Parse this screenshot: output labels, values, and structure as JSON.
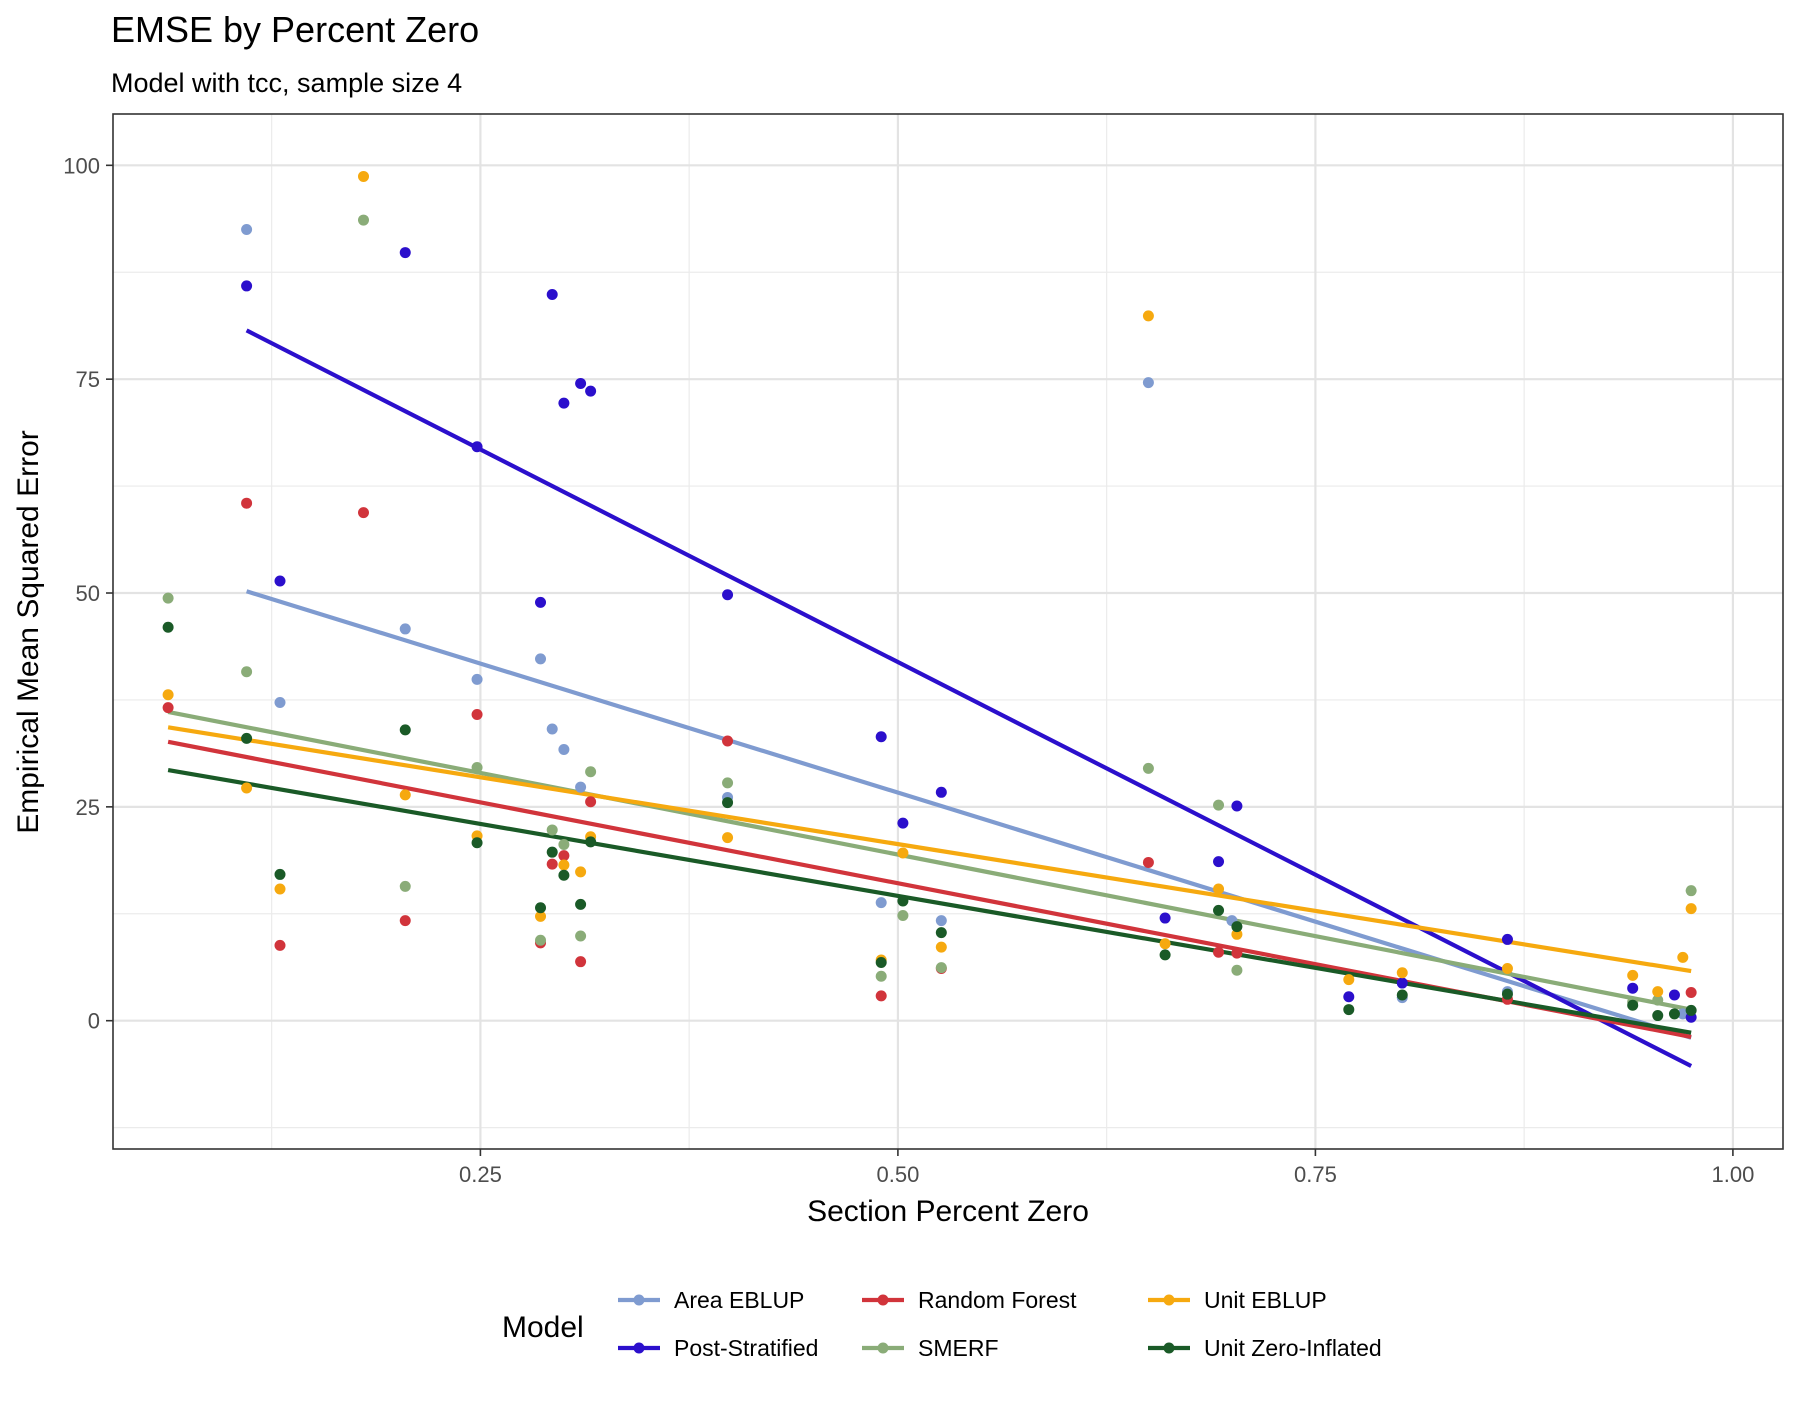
{
  "chart_data": {
    "type": "scatter",
    "title": "EMSE by Percent Zero",
    "subtitle": "Model with tcc, sample size 4",
    "xlabel": "Section Percent Zero",
    "ylabel": "Empirical Mean Squared Error",
    "xlim": [
      0.03,
      1.03
    ],
    "ylim": [
      -15,
      106
    ],
    "x_ticks": [
      0.25,
      0.5,
      0.75,
      1.0
    ],
    "x_tick_labels": [
      "0.25",
      "0.50",
      "0.75",
      "1.00"
    ],
    "y_ticks": [
      0,
      25,
      50,
      75,
      100
    ],
    "y_tick_labels": [
      "0",
      "25",
      "50",
      "75",
      "100"
    ],
    "grid": true,
    "legend": {
      "title": "Model",
      "position": "bottom",
      "columns": 3
    },
    "series": [
      {
        "name": "Area EBLUP",
        "color": "#7f9bd0",
        "points": [
          [
            0.11,
            92.5
          ],
          [
            0.13,
            37.2
          ],
          [
            0.205,
            45.8
          ],
          [
            0.248,
            39.9
          ],
          [
            0.286,
            42.3
          ],
          [
            0.293,
            34.1
          ],
          [
            0.3,
            31.7
          ],
          [
            0.31,
            27.3
          ],
          [
            0.398,
            26.1
          ],
          [
            0.49,
            13.8
          ],
          [
            0.526,
            11.7
          ],
          [
            0.65,
            74.6
          ],
          [
            0.7,
            11.7
          ],
          [
            0.802,
            2.7
          ],
          [
            0.865,
            3.4
          ],
          [
            0.97,
            0.8
          ]
        ],
        "fit": [
          [
            0.11,
            50.2
          ],
          [
            0.975,
            -2.0
          ]
        ]
      },
      {
        "name": "Post-Stratified",
        "color": "#2b0fcc",
        "points": [
          [
            0.11,
            85.9
          ],
          [
            0.13,
            51.4
          ],
          [
            0.205,
            89.8
          ],
          [
            0.248,
            67.1
          ],
          [
            0.286,
            48.9
          ],
          [
            0.293,
            84.9
          ],
          [
            0.3,
            72.2
          ],
          [
            0.31,
            74.5
          ],
          [
            0.316,
            73.6
          ],
          [
            0.398,
            49.8
          ],
          [
            0.49,
            33.2
          ],
          [
            0.503,
            23.1
          ],
          [
            0.526,
            26.7
          ],
          [
            0.66,
            12.0
          ],
          [
            0.692,
            18.6
          ],
          [
            0.703,
            25.1
          ],
          [
            0.77,
            2.8
          ],
          [
            0.802,
            4.4
          ],
          [
            0.865,
            9.5
          ],
          [
            0.94,
            3.8
          ],
          [
            0.965,
            3.0
          ],
          [
            0.975,
            0.4
          ]
        ],
        "fit": [
          [
            0.11,
            80.7
          ],
          [
            0.975,
            -5.3
          ]
        ]
      },
      {
        "name": "Random Forest",
        "color": "#d1343b",
        "points": [
          [
            0.063,
            36.6
          ],
          [
            0.11,
            60.5
          ],
          [
            0.13,
            8.8
          ],
          [
            0.18,
            59.4
          ],
          [
            0.205,
            11.7
          ],
          [
            0.248,
            35.8
          ],
          [
            0.286,
            9.1
          ],
          [
            0.293,
            18.3
          ],
          [
            0.3,
            19.3
          ],
          [
            0.31,
            6.9
          ],
          [
            0.316,
            25.6
          ],
          [
            0.398,
            32.7
          ],
          [
            0.49,
            2.9
          ],
          [
            0.526,
            6.1
          ],
          [
            0.65,
            18.5
          ],
          [
            0.692,
            8.0
          ],
          [
            0.703,
            7.9
          ],
          [
            0.865,
            2.5
          ],
          [
            0.975,
            3.3
          ]
        ],
        "fit": [
          [
            0.063,
            32.6
          ],
          [
            0.975,
            -1.9
          ]
        ]
      },
      {
        "name": "SMERF",
        "color": "#8aac78",
        "points": [
          [
            0.063,
            49.4
          ],
          [
            0.11,
            40.8
          ],
          [
            0.18,
            93.6
          ],
          [
            0.205,
            15.7
          ],
          [
            0.248,
            29.6
          ],
          [
            0.286,
            9.4
          ],
          [
            0.293,
            22.3
          ],
          [
            0.3,
            20.6
          ],
          [
            0.31,
            9.9
          ],
          [
            0.316,
            29.1
          ],
          [
            0.398,
            27.8
          ],
          [
            0.49,
            5.2
          ],
          [
            0.503,
            12.3
          ],
          [
            0.526,
            6.2
          ],
          [
            0.65,
            29.5
          ],
          [
            0.692,
            25.2
          ],
          [
            0.703,
            5.9
          ],
          [
            0.94,
            2.2
          ],
          [
            0.955,
            2.4
          ],
          [
            0.975,
            15.2
          ]
        ],
        "fit": [
          [
            0.063,
            36.1
          ],
          [
            0.975,
            1.3
          ]
        ]
      },
      {
        "name": "Unit EBLUP",
        "color": "#f6a90f",
        "points": [
          [
            0.063,
            38.1
          ],
          [
            0.11,
            27.2
          ],
          [
            0.13,
            15.4
          ],
          [
            0.18,
            98.7
          ],
          [
            0.205,
            26.4
          ],
          [
            0.248,
            21.6
          ],
          [
            0.286,
            12.2
          ],
          [
            0.3,
            18.2
          ],
          [
            0.31,
            17.4
          ],
          [
            0.316,
            21.5
          ],
          [
            0.398,
            21.4
          ],
          [
            0.49,
            7.1
          ],
          [
            0.503,
            19.6
          ],
          [
            0.526,
            8.6
          ],
          [
            0.65,
            82.4
          ],
          [
            0.66,
            9.0
          ],
          [
            0.692,
            15.4
          ],
          [
            0.703,
            10.1
          ],
          [
            0.77,
            4.8
          ],
          [
            0.802,
            5.6
          ],
          [
            0.865,
            6.1
          ],
          [
            0.94,
            5.3
          ],
          [
            0.955,
            3.4
          ],
          [
            0.97,
            7.4
          ],
          [
            0.975,
            13.1
          ]
        ],
        "fit": [
          [
            0.063,
            34.3
          ],
          [
            0.975,
            5.8
          ]
        ]
      },
      {
        "name": "Unit Zero-Inflated",
        "color": "#1a5a27",
        "points": [
          [
            0.063,
            46.0
          ],
          [
            0.11,
            33.0
          ],
          [
            0.13,
            17.1
          ],
          [
            0.205,
            34.0
          ],
          [
            0.248,
            20.8
          ],
          [
            0.286,
            13.2
          ],
          [
            0.293,
            19.7
          ],
          [
            0.3,
            17.0
          ],
          [
            0.31,
            13.6
          ],
          [
            0.316,
            20.9
          ],
          [
            0.398,
            25.5
          ],
          [
            0.49,
            6.8
          ],
          [
            0.503,
            14.0
          ],
          [
            0.526,
            10.3
          ],
          [
            0.66,
            7.7
          ],
          [
            0.692,
            12.9
          ],
          [
            0.703,
            11.0
          ],
          [
            0.77,
            1.3
          ],
          [
            0.802,
            3.0
          ],
          [
            0.865,
            3.1
          ],
          [
            0.94,
            1.8
          ],
          [
            0.955,
            0.6
          ],
          [
            0.965,
            0.8
          ],
          [
            0.975,
            1.2
          ]
        ],
        "fit": [
          [
            0.063,
            29.3
          ],
          [
            0.975,
            -1.4
          ]
        ]
      }
    ]
  }
}
